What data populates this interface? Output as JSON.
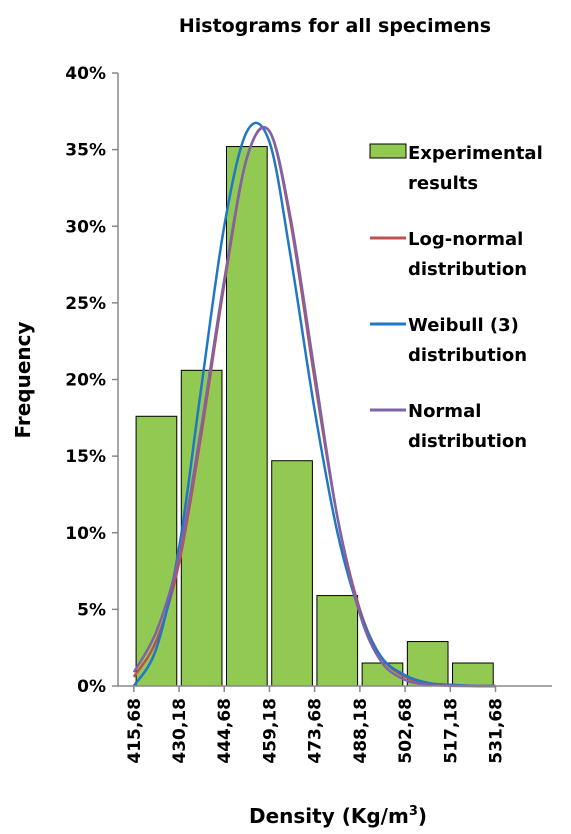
{
  "chart_data": {
    "type": "bar",
    "title": "Histograms for all specimens",
    "xlabel_main": "Density (Kg/m",
    "xlabel_sup": "3",
    "xlabel_close": ")",
    "ylabel": "Frequency",
    "categories": [
      "415,68",
      "430,18",
      "444,68",
      "459,18",
      "473,68",
      "488,18",
      "502,68",
      "517,18",
      "531,68"
    ],
    "ylim": [
      0,
      0.4
    ],
    "yticks": [
      0,
      0.05,
      0.1,
      0.15,
      0.2,
      0.25,
      0.3,
      0.35,
      0.4
    ],
    "ytick_labels": [
      "0%",
      "5%",
      "10%",
      "15%",
      "20%",
      "25%",
      "30%",
      "35%",
      "40%"
    ],
    "grid": false,
    "legend_position": "right",
    "bars": {
      "name": "Experimental results",
      "color": "#92c953",
      "values": [
        0.176,
        0.206,
        0.352,
        0.147,
        0.059,
        0.015,
        0.029,
        0.015
      ]
    },
    "series": [
      {
        "name": "Log-normal distribution",
        "color": "#c0504d",
        "x": [
          415.68,
          423,
          430.18,
          437,
          444.68,
          452,
          459.18,
          466,
          473.68,
          481,
          488.18,
          495,
          502.68,
          510,
          517.18,
          524,
          531.68
        ],
        "values": [
          0.006,
          0.03,
          0.08,
          0.16,
          0.262,
          0.345,
          0.362,
          0.302,
          0.2,
          0.11,
          0.05,
          0.019,
          0.006,
          0.002,
          0.0005,
          0.0001,
          0.0
        ]
      },
      {
        "name": "Weibull (3) distribution",
        "color": "#1f77c7",
        "x": [
          415.68,
          423,
          430.18,
          437,
          444.68,
          452,
          459.18,
          466,
          473.68,
          481,
          488.18,
          495,
          502.68,
          510,
          517.18,
          524,
          531.68
        ],
        "values": [
          0.0,
          0.025,
          0.09,
          0.19,
          0.3,
          0.362,
          0.355,
          0.28,
          0.18,
          0.1,
          0.048,
          0.019,
          0.007,
          0.002,
          0.0008,
          0.0002,
          0.0
        ]
      },
      {
        "name": "Normal distribution",
        "color": "#7f63a8",
        "x": [
          415.68,
          423,
          430.18,
          437,
          444.68,
          452,
          459.18,
          466,
          473.68,
          481,
          488.18,
          495,
          502.68,
          510,
          517.18,
          524,
          531.68
        ],
        "values": [
          0.009,
          0.036,
          0.085,
          0.165,
          0.265,
          0.345,
          0.362,
          0.305,
          0.205,
          0.11,
          0.047,
          0.016,
          0.004,
          0.001,
          0.0002,
          0.0,
          0.0
        ]
      }
    ],
    "legend": {
      "items": [
        {
          "line1": "Experimental",
          "line2": "results",
          "kind": "bar",
          "color": "#92c953"
        },
        {
          "line1": "Log-normal",
          "line2": "distribution",
          "kind": "line",
          "color": "#c0504d"
        },
        {
          "line1": "Weibull (3)",
          "line2": "distribution",
          "kind": "line",
          "color": "#1f77c7"
        },
        {
          "line1": "Normal",
          "line2": "distribution",
          "kind": "line",
          "color": "#7f63a8"
        }
      ]
    }
  }
}
